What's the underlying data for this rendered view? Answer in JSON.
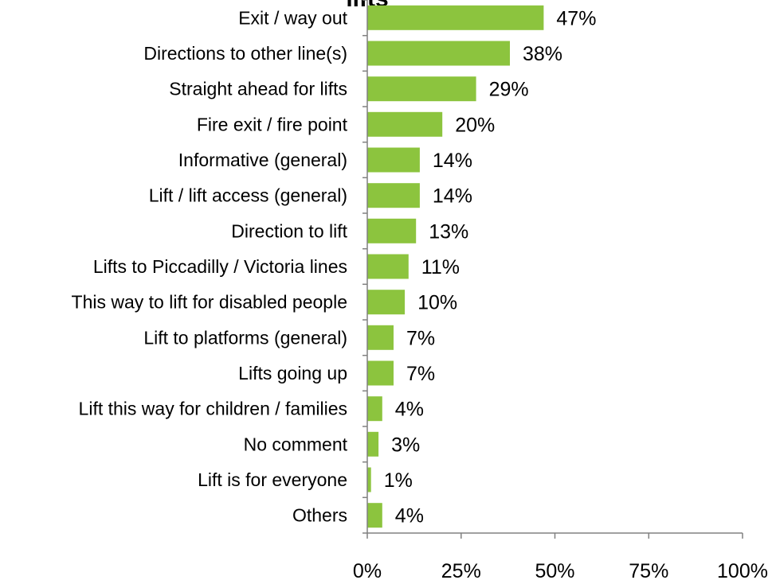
{
  "chart_data": {
    "type": "bar",
    "orientation": "horizontal",
    "title": "lifts",
    "categories": [
      "Exit / way out",
      "Directions to other line(s)",
      "Straight ahead for lifts",
      "Fire exit / fire point",
      "Informative (general)",
      "Lift / lift access (general)",
      "Direction to lift",
      "Lifts to Piccadilly / Victoria lines",
      "This way to lift for disabled people",
      "Lift to platforms (general)",
      "Lifts going up",
      "Lift this way for children / families",
      "No comment",
      "Lift is for everyone",
      "Others"
    ],
    "values": [
      47,
      38,
      29,
      20,
      14,
      14,
      13,
      11,
      10,
      7,
      7,
      4,
      3,
      1,
      4
    ],
    "value_labels": [
      "47%",
      "38%",
      "29%",
      "20%",
      "14%",
      "14%",
      "13%",
      "11%",
      "10%",
      "7%",
      "7%",
      "4%",
      "3%",
      "1%",
      "4%"
    ],
    "xlim": [
      0,
      100
    ],
    "x_ticks": [
      0,
      25,
      50,
      75,
      100
    ],
    "x_tick_labels": [
      "0%",
      "25%",
      "50%",
      "75%",
      "100%"
    ],
    "xlabel": "",
    "ylabel": "",
    "grid": false,
    "legend": "none",
    "bar_color": "#8CC43E"
  }
}
